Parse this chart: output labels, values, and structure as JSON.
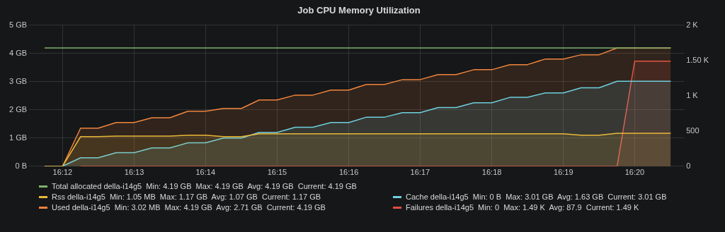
{
  "chart_data": {
    "type": "area",
    "title": "Job CPU Memory Utilization",
    "x": [
      16.1958,
      16.2,
      16.2042,
      16.2083,
      16.2125,
      16.2167,
      16.2208,
      16.225,
      16.2292,
      16.2333,
      16.2375,
      16.2417,
      16.2458,
      16.25,
      16.2542,
      16.2583,
      16.2625,
      16.2667,
      16.2708,
      16.275,
      16.2792,
      16.2833,
      16.2875,
      16.2917,
      16.2958,
      16.3,
      16.3042,
      16.3083,
      16.3125,
      16.3167,
      16.3208,
      16.325,
      16.3292,
      16.3333,
      16.3375,
      16.3417
    ],
    "xlim": [
      16.1922,
      16.3448
    ],
    "xticks": [
      {
        "value": 16.2,
        "label": "16:12"
      },
      {
        "value": 16.2167,
        "label": "16:13"
      },
      {
        "value": 16.2333,
        "label": "16:14"
      },
      {
        "value": 16.25,
        "label": "16:15"
      },
      {
        "value": 16.2667,
        "label": "16:16"
      },
      {
        "value": 16.2833,
        "label": "16:17"
      },
      {
        "value": 16.3,
        "label": "16:18"
      },
      {
        "value": 16.3167,
        "label": "16:19"
      },
      {
        "value": 16.3333,
        "label": "16:20"
      }
    ],
    "ylim": [
      0,
      5
    ],
    "yticks": [
      {
        "value": 0,
        "label": "0 B"
      },
      {
        "value": 1,
        "label": "1 GB"
      },
      {
        "value": 2,
        "label": "2 GB"
      },
      {
        "value": 3,
        "label": "3 GB"
      },
      {
        "value": 4,
        "label": "4 GB"
      },
      {
        "value": 5,
        "label": "5 GB"
      }
    ],
    "y2lim": [
      0,
      2000
    ],
    "y2ticks": [
      0,
      500,
      {
        "value": 1000,
        "label": "1 K"
      },
      {
        "value": 1500,
        "label": "1.50 K"
      },
      {
        "value": 2000,
        "label": "2 K"
      }
    ],
    "grid": true,
    "legend": "bottom",
    "marker": "none",
    "line_style": "solid",
    "series": [
      {
        "name": "Total allocated della-i14g5  Min: 4.19 GB  Max: 4.19 GB  Avg: 4.19 GB  Current: 4.19 GB",
        "type": "line",
        "color": "#7eb26d",
        "values": [
          4.19,
          4.19,
          4.19,
          4.19,
          4.19,
          4.19,
          4.19,
          4.19,
          4.19,
          4.19,
          4.19,
          4.19,
          4.19,
          4.19,
          4.19,
          4.19,
          4.19,
          4.19,
          4.19,
          4.19,
          4.19,
          4.19,
          4.19,
          4.19,
          4.19,
          4.19,
          4.19,
          4.19,
          4.19,
          4.19,
          4.19,
          4.19,
          4.19,
          4.19,
          4.19,
          4.19
        ]
      },
      {
        "name": "Rss della-i14g5  Min: 1.05 MB  Max: 1.17 GB  Avg: 1.07 GB  Current: 1.17 GB",
        "color": "#eab839",
        "values": [
          0,
          0,
          1.05,
          1.05,
          1.07,
          1.07,
          1.07,
          1.07,
          1.1,
          1.1,
          1.05,
          1.05,
          1.15,
          1.15,
          1.15,
          1.15,
          1.15,
          1.15,
          1.15,
          1.15,
          1.15,
          1.15,
          1.15,
          1.15,
          1.15,
          1.15,
          1.15,
          1.15,
          1.15,
          1.15,
          1.1,
          1.1,
          1.17,
          1.17,
          1.17,
          1.17
        ]
      },
      {
        "name": "Cache della-i14g5  Min: 0 B  Max: 3.01 GB  Avg: 1.63 GB  Current: 3.01 GB",
        "color": "#6ed0e0",
        "values": [
          0,
          0,
          0.3,
          0.3,
          0.48,
          0.48,
          0.65,
          0.65,
          0.83,
          0.83,
          1.0,
          1.0,
          1.2,
          1.2,
          1.38,
          1.38,
          1.55,
          1.55,
          1.74,
          1.74,
          1.9,
          1.9,
          2.08,
          2.08,
          2.25,
          2.25,
          2.44,
          2.44,
          2.6,
          2.6,
          2.78,
          2.78,
          3.01,
          3.01,
          3.01,
          3.01
        ]
      },
      {
        "name": "Used della-i14g5  Min: 3.02 MB  Max: 4.19 GB  Avg: 2.71 GB  Current: 4.19 GB",
        "color": "#ef843c",
        "values": [
          0,
          0,
          1.35,
          1.35,
          1.55,
          1.55,
          1.72,
          1.72,
          1.95,
          1.95,
          2.05,
          2.05,
          2.35,
          2.35,
          2.52,
          2.52,
          2.7,
          2.7,
          2.9,
          2.9,
          3.07,
          3.07,
          3.25,
          3.25,
          3.42,
          3.42,
          3.6,
          3.6,
          3.8,
          3.8,
          3.95,
          3.95,
          4.19,
          4.19,
          4.19,
          4.19
        ]
      },
      {
        "name": "Failures della-i14g5  Min: 0  Max: 1.49 K  Avg: 87.9  Current: 1.49 K",
        "color": "#e24d42",
        "axis": "y2",
        "values": [
          null,
          null,
          0,
          0,
          0,
          0,
          0,
          0,
          0,
          0,
          0,
          0,
          0,
          0,
          0,
          0,
          0,
          0,
          0,
          0,
          0,
          0,
          0,
          0,
          0,
          0,
          0,
          0,
          0,
          0,
          0,
          0,
          0,
          1490,
          1490,
          1490
        ]
      }
    ]
  }
}
